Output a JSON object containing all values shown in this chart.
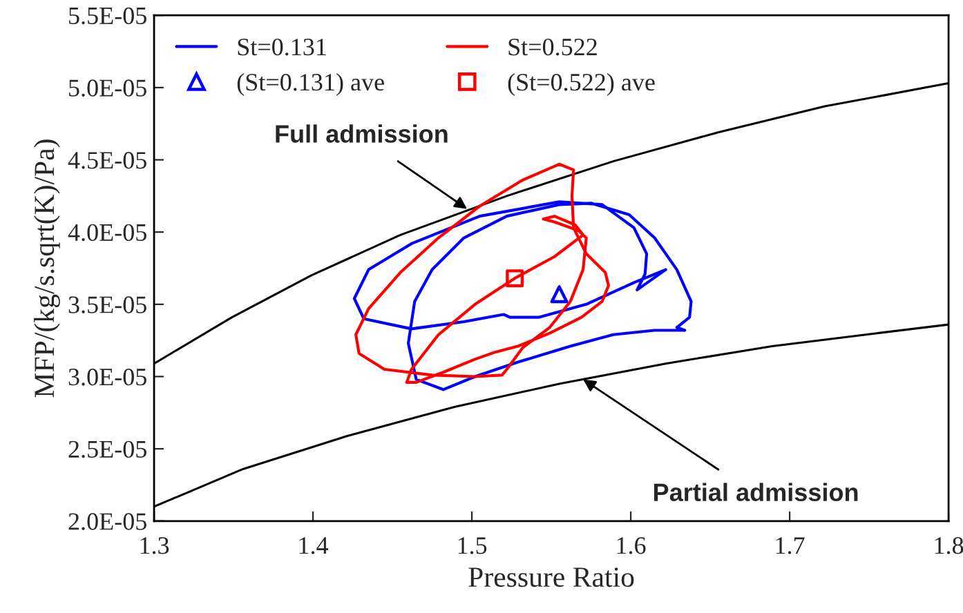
{
  "chart_data": {
    "type": "line",
    "xlabel": "Pressure Ratio",
    "ylabel": "MFP/(kg/s.sqrt(K)/Pa)",
    "xlim": [
      1.3,
      1.8
    ],
    "xticks": [
      1.3,
      1.4,
      1.5,
      1.6,
      1.7,
      1.8
    ],
    "ylim": [
      2e-05,
      5.5e-05
    ],
    "yticks": [
      {
        "value": 2e-05,
        "label": "2.0E-05"
      },
      {
        "value": 2.5e-05,
        "label": "2.5E-05"
      },
      {
        "value": 3e-05,
        "label": "3.0E-05"
      },
      {
        "value": 3.5e-05,
        "label": "3.5E-05"
      },
      {
        "value": 4e-05,
        "label": "4.0E-05"
      },
      {
        "value": 4.5e-05,
        "label": "4.5E-05"
      },
      {
        "value": 5e-05,
        "label": "5.0E-05"
      },
      {
        "value": 5.5e-05,
        "label": "5.5E-05"
      }
    ],
    "grid": false,
    "legend": "top left",
    "line_style": "solid",
    "series": [
      {
        "color": "#000000",
        "x": [
          1.3,
          1.349,
          1.399,
          1.455,
          1.522,
          1.589,
          1.655,
          1.722,
          1.8
        ],
        "values": [
          3.09e-05,
          3.41e-05,
          3.7e-05,
          3.98e-05,
          4.25e-05,
          4.49e-05,
          4.69e-05,
          4.87e-05,
          5.03e-05
        ]
      },
      {
        "color": "#000000",
        "x": [
          1.3,
          1.356,
          1.422,
          1.489,
          1.555,
          1.622,
          1.689,
          1.755,
          1.8
        ],
        "values": [
          2.1e-05,
          2.36e-05,
          2.59e-05,
          2.79e-05,
          2.95e-05,
          3.09e-05,
          3.21e-05,
          3.3e-05,
          3.36e-05
        ]
      },
      {
        "name": "St=0.131",
        "color": "#0000ff",
        "x": [
          1.622,
          1.602,
          1.572,
          1.542,
          1.524,
          1.52,
          1.495,
          1.462,
          1.432,
          1.426,
          null,
          1.426,
          1.435,
          1.462,
          1.505,
          1.555,
          1.582,
          1.602,
          1.61,
          null,
          1.61,
          1.609,
          1.604,
          null,
          1.604,
          1.622,
          null,
          1.634,
          1.629,
          null,
          1.629,
          1.637,
          1.638,
          null,
          1.638,
          1.629,
          1.615,
          1.599,
          1.575,
          1.555,
          1.522,
          1.495,
          1.475,
          1.464,
          1.46,
          null,
          1.46,
          1.465,
          1.482,
          1.502,
          1.529,
          1.562,
          1.589,
          1.615,
          1.634
        ],
        "values": [
          3.74e-05,
          3.65e-05,
          3.5e-05,
          3.41e-05,
          3.41e-05,
          3.43e-05,
          3.38e-05,
          3.33e-05,
          3.4e-05,
          3.54e-05,
          null,
          3.54e-05,
          3.74e-05,
          3.92e-05,
          4.11e-05,
          4.21e-05,
          4.19e-05,
          4.03e-05,
          3.85e-05,
          null,
          3.85e-05,
          3.71e-05,
          3.6e-05,
          null,
          3.6e-05,
          3.74e-05,
          null,
          3.32e-05,
          3.34e-05,
          null,
          3.34e-05,
          3.41e-05,
          3.52e-05,
          null,
          3.52e-05,
          3.74e-05,
          3.96e-05,
          4.12e-05,
          4.2e-05,
          4.19e-05,
          4.11e-05,
          3.96e-05,
          3.74e-05,
          3.52e-05,
          3.23e-05,
          null,
          3.23e-05,
          2.98e-05,
          2.91e-05,
          3e-05,
          3.1e-05,
          3.21e-05,
          3.29e-05,
          3.32e-05,
          3.32e-05
        ]
      },
      {
        "name": "St=0.522",
        "color": "#ff0000",
        "x": [
          1.459,
          1.462,
          1.479,
          1.502,
          1.527,
          1.552,
          1.57,
          null,
          1.57,
          1.565,
          1.552,
          1.545,
          null,
          1.545,
          1.552,
          1.567,
          1.572,
          null,
          1.572,
          1.57,
          1.562,
          1.549,
          1.532,
          1.522,
          1.519,
          1.502,
          1.475,
          1.445,
          1.429,
          1.427,
          null,
          1.427,
          1.435,
          1.455,
          1.479,
          1.505,
          1.532,
          1.555,
          1.564,
          null,
          1.564,
          1.563,
          null,
          1.563,
          1.564,
          1.572,
          1.584,
          1.586,
          null,
          1.586,
          1.582,
          1.569,
          1.549,
          1.529,
          1.515,
          1.502,
          1.482,
          1.465,
          1.459
        ],
        "values": [
          2.96e-05,
          3.05e-05,
          3.29e-05,
          3.5e-05,
          3.68e-05,
          3.83e-05,
          3.98e-05,
          null,
          3.98e-05,
          4.05e-05,
          4.11e-05,
          4.09e-05,
          null,
          4.09e-05,
          4.07e-05,
          4.01e-05,
          3.96e-05,
          null,
          3.96e-05,
          3.74e-05,
          3.52e-05,
          3.34e-05,
          3.2e-05,
          3.05e-05,
          3.01e-05,
          3e-05,
          3.01e-05,
          3.05e-05,
          3.16e-05,
          3.29e-05,
          null,
          3.29e-05,
          3.47e-05,
          3.72e-05,
          3.96e-05,
          4.18e-05,
          4.36e-05,
          4.47e-05,
          4.43e-05,
          null,
          4.43e-05,
          4.25e-05,
          null,
          4.25e-05,
          4.03e-05,
          3.85e-05,
          3.72e-05,
          3.63e-05,
          null,
          3.63e-05,
          3.52e-05,
          3.41e-05,
          3.3e-05,
          3.21e-05,
          3.17e-05,
          3.12e-05,
          3.03e-05,
          2.96e-05,
          2.96e-05
        ]
      },
      {
        "name": "(St=0.131) ave",
        "type": "scatter",
        "marker": "triangle",
        "color": "#0000ff",
        "x": [
          1.555
        ],
        "values": [
          3.57e-05
        ]
      },
      {
        "name": "(St=0.522) ave",
        "type": "scatter",
        "marker": "square",
        "color": "#ff0000",
        "x": [
          1.527
        ],
        "values": [
          3.68e-05
        ]
      }
    ],
    "annotations": [
      {
        "text": "Full admission",
        "x": 1.497,
        "y": 4.16e-05
      },
      {
        "text": "Partial admission",
        "x": 1.57,
        "y": 2.98e-05
      }
    ]
  }
}
